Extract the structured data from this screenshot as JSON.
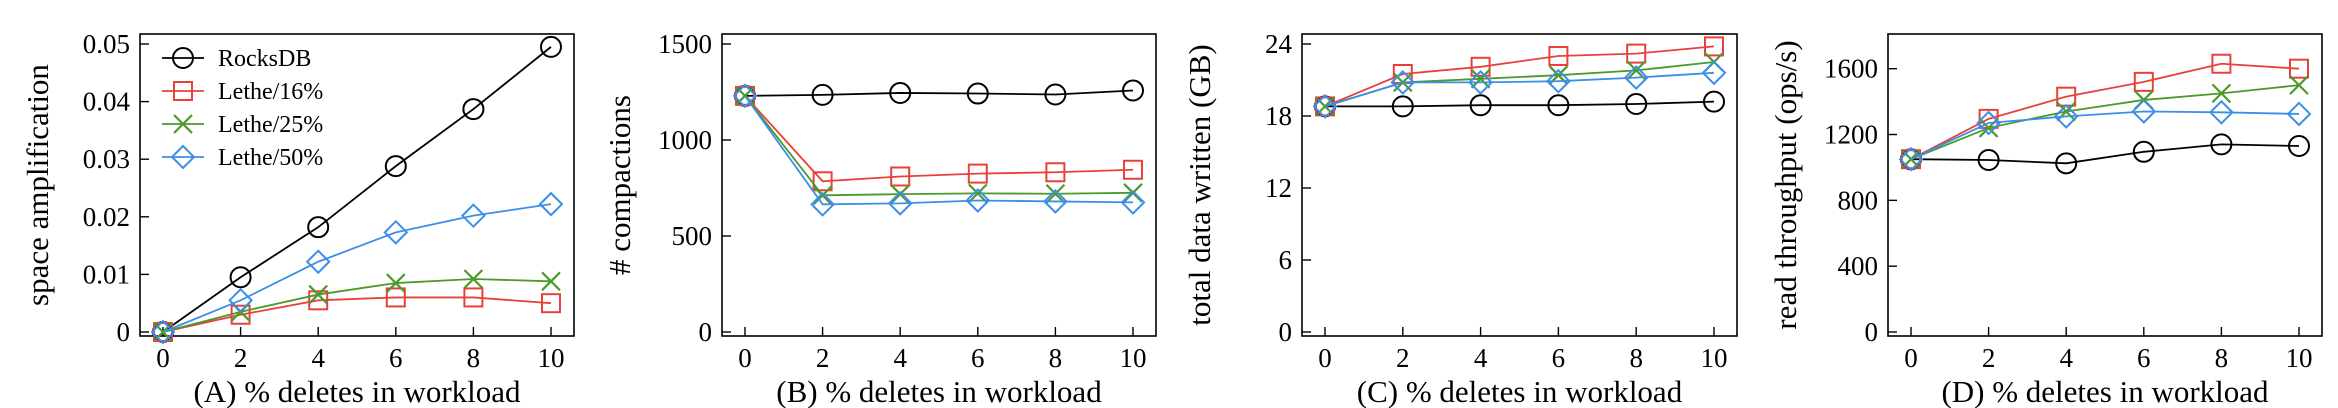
{
  "chart_data": [
    {
      "type": "line",
      "x": [
        0,
        2,
        4,
        6,
        8,
        10
      ],
      "xticks": [
        "0",
        "2",
        "4",
        "6",
        "8",
        "10"
      ],
      "xlabel": "(A) % deletes in workload",
      "ylabel": "space amplification",
      "ylim": [
        0,
        0.05
      ],
      "yticks": [
        0,
        0.01,
        0.02,
        0.03,
        0.04,
        0.05
      ],
      "ytick_labels": [
        "0",
        "0.01",
        "0.02",
        "0.03",
        "0.04",
        "0.05"
      ],
      "legend": "top-left",
      "series": [
        {
          "name": "RocksDB",
          "color": "#000000",
          "marker": "circle",
          "values": [
            0,
            0.0095,
            0.0182,
            0.0288,
            0.0387,
            0.0495
          ]
        },
        {
          "name": "Lethe/16%",
          "color": "#e8413c",
          "marker": "square",
          "values": [
            0,
            0.003,
            0.0055,
            0.006,
            0.006,
            0.005
          ]
        },
        {
          "name": "Lethe/25%",
          "color": "#4c9a2a",
          "marker": "x",
          "values": [
            0,
            0.0035,
            0.0065,
            0.0085,
            0.0092,
            0.0088
          ]
        },
        {
          "name": "Lethe/50%",
          "color": "#3b8fe8",
          "marker": "diamond",
          "values": [
            0,
            0.0055,
            0.0122,
            0.0173,
            0.0202,
            0.0222
          ]
        }
      ]
    },
    {
      "type": "line",
      "x": [
        0,
        2,
        4,
        6,
        8,
        10
      ],
      "xticks": [
        "0",
        "2",
        "4",
        "6",
        "8",
        "10"
      ],
      "xlabel": "(B) % deletes in workload",
      "ylabel": "# compactions",
      "ylim": [
        0,
        1500
      ],
      "yticks": [
        0,
        500,
        1000,
        1500
      ],
      "ytick_labels": [
        "0",
        "500",
        "1000",
        "1500"
      ],
      "series": [
        {
          "color": "#000000",
          "marker": "circle",
          "values": [
            1230,
            1235,
            1245,
            1242,
            1237,
            1258
          ]
        },
        {
          "color": "#e8413c",
          "marker": "square",
          "values": [
            1230,
            785,
            810,
            825,
            832,
            845
          ]
        },
        {
          "color": "#4c9a2a",
          "marker": "x",
          "values": [
            1230,
            712,
            718,
            722,
            720,
            725
          ]
        },
        {
          "color": "#3b8fe8",
          "marker": "diamond",
          "values": [
            1230,
            665,
            670,
            685,
            680,
            675
          ]
        }
      ]
    },
    {
      "type": "line",
      "x": [
        0,
        2,
        4,
        6,
        8,
        10
      ],
      "xticks": [
        "0",
        "2",
        "4",
        "6",
        "8",
        "10"
      ],
      "xlabel": "(C) % deletes in workload",
      "ylabel": "total data written (GB)",
      "ylim": [
        0,
        24
      ],
      "yticks": [
        0,
        6,
        12,
        18,
        24
      ],
      "ytick_labels": [
        "0",
        "6",
        "12",
        "18",
        "24"
      ],
      "series": [
        {
          "color": "#000000",
          "marker": "circle",
          "values": [
            18.8,
            18.8,
            18.9,
            18.9,
            19.0,
            19.2
          ]
        },
        {
          "color": "#e8413c",
          "marker": "square",
          "values": [
            18.8,
            21.5,
            22.1,
            23.0,
            23.2,
            23.8
          ]
        },
        {
          "color": "#4c9a2a",
          "marker": "x",
          "values": [
            18.8,
            20.8,
            21.1,
            21.4,
            21.8,
            22.5
          ]
        },
        {
          "color": "#3b8fe8",
          "marker": "diamond",
          "values": [
            18.8,
            20.8,
            20.8,
            20.9,
            21.2,
            21.6
          ]
        }
      ]
    },
    {
      "type": "line",
      "x": [
        0,
        2,
        4,
        6,
        8,
        10
      ],
      "xticks": [
        "0",
        "2",
        "4",
        "6",
        "8",
        "10"
      ],
      "xlabel": "(D) % deletes in workload",
      "ylabel": "read throughput (ops/s)",
      "ylim": [
        0,
        1750
      ],
      "yticks": [
        0,
        400,
        800,
        1200,
        1600
      ],
      "ytick_labels": [
        "0",
        "400",
        "800",
        "1200",
        "1600"
      ],
      "series": [
        {
          "color": "#000000",
          "marker": "circle",
          "values": [
            1050,
            1045,
            1025,
            1095,
            1140,
            1130
          ]
        },
        {
          "color": "#e8413c",
          "marker": "square",
          "values": [
            1050,
            1295,
            1430,
            1520,
            1630,
            1600
          ]
        },
        {
          "color": "#4c9a2a",
          "marker": "x",
          "values": [
            1050,
            1240,
            1340,
            1410,
            1450,
            1500
          ]
        },
        {
          "color": "#3b8fe8",
          "marker": "diamond",
          "values": [
            1050,
            1270,
            1310,
            1340,
            1335,
            1325
          ]
        }
      ]
    }
  ]
}
